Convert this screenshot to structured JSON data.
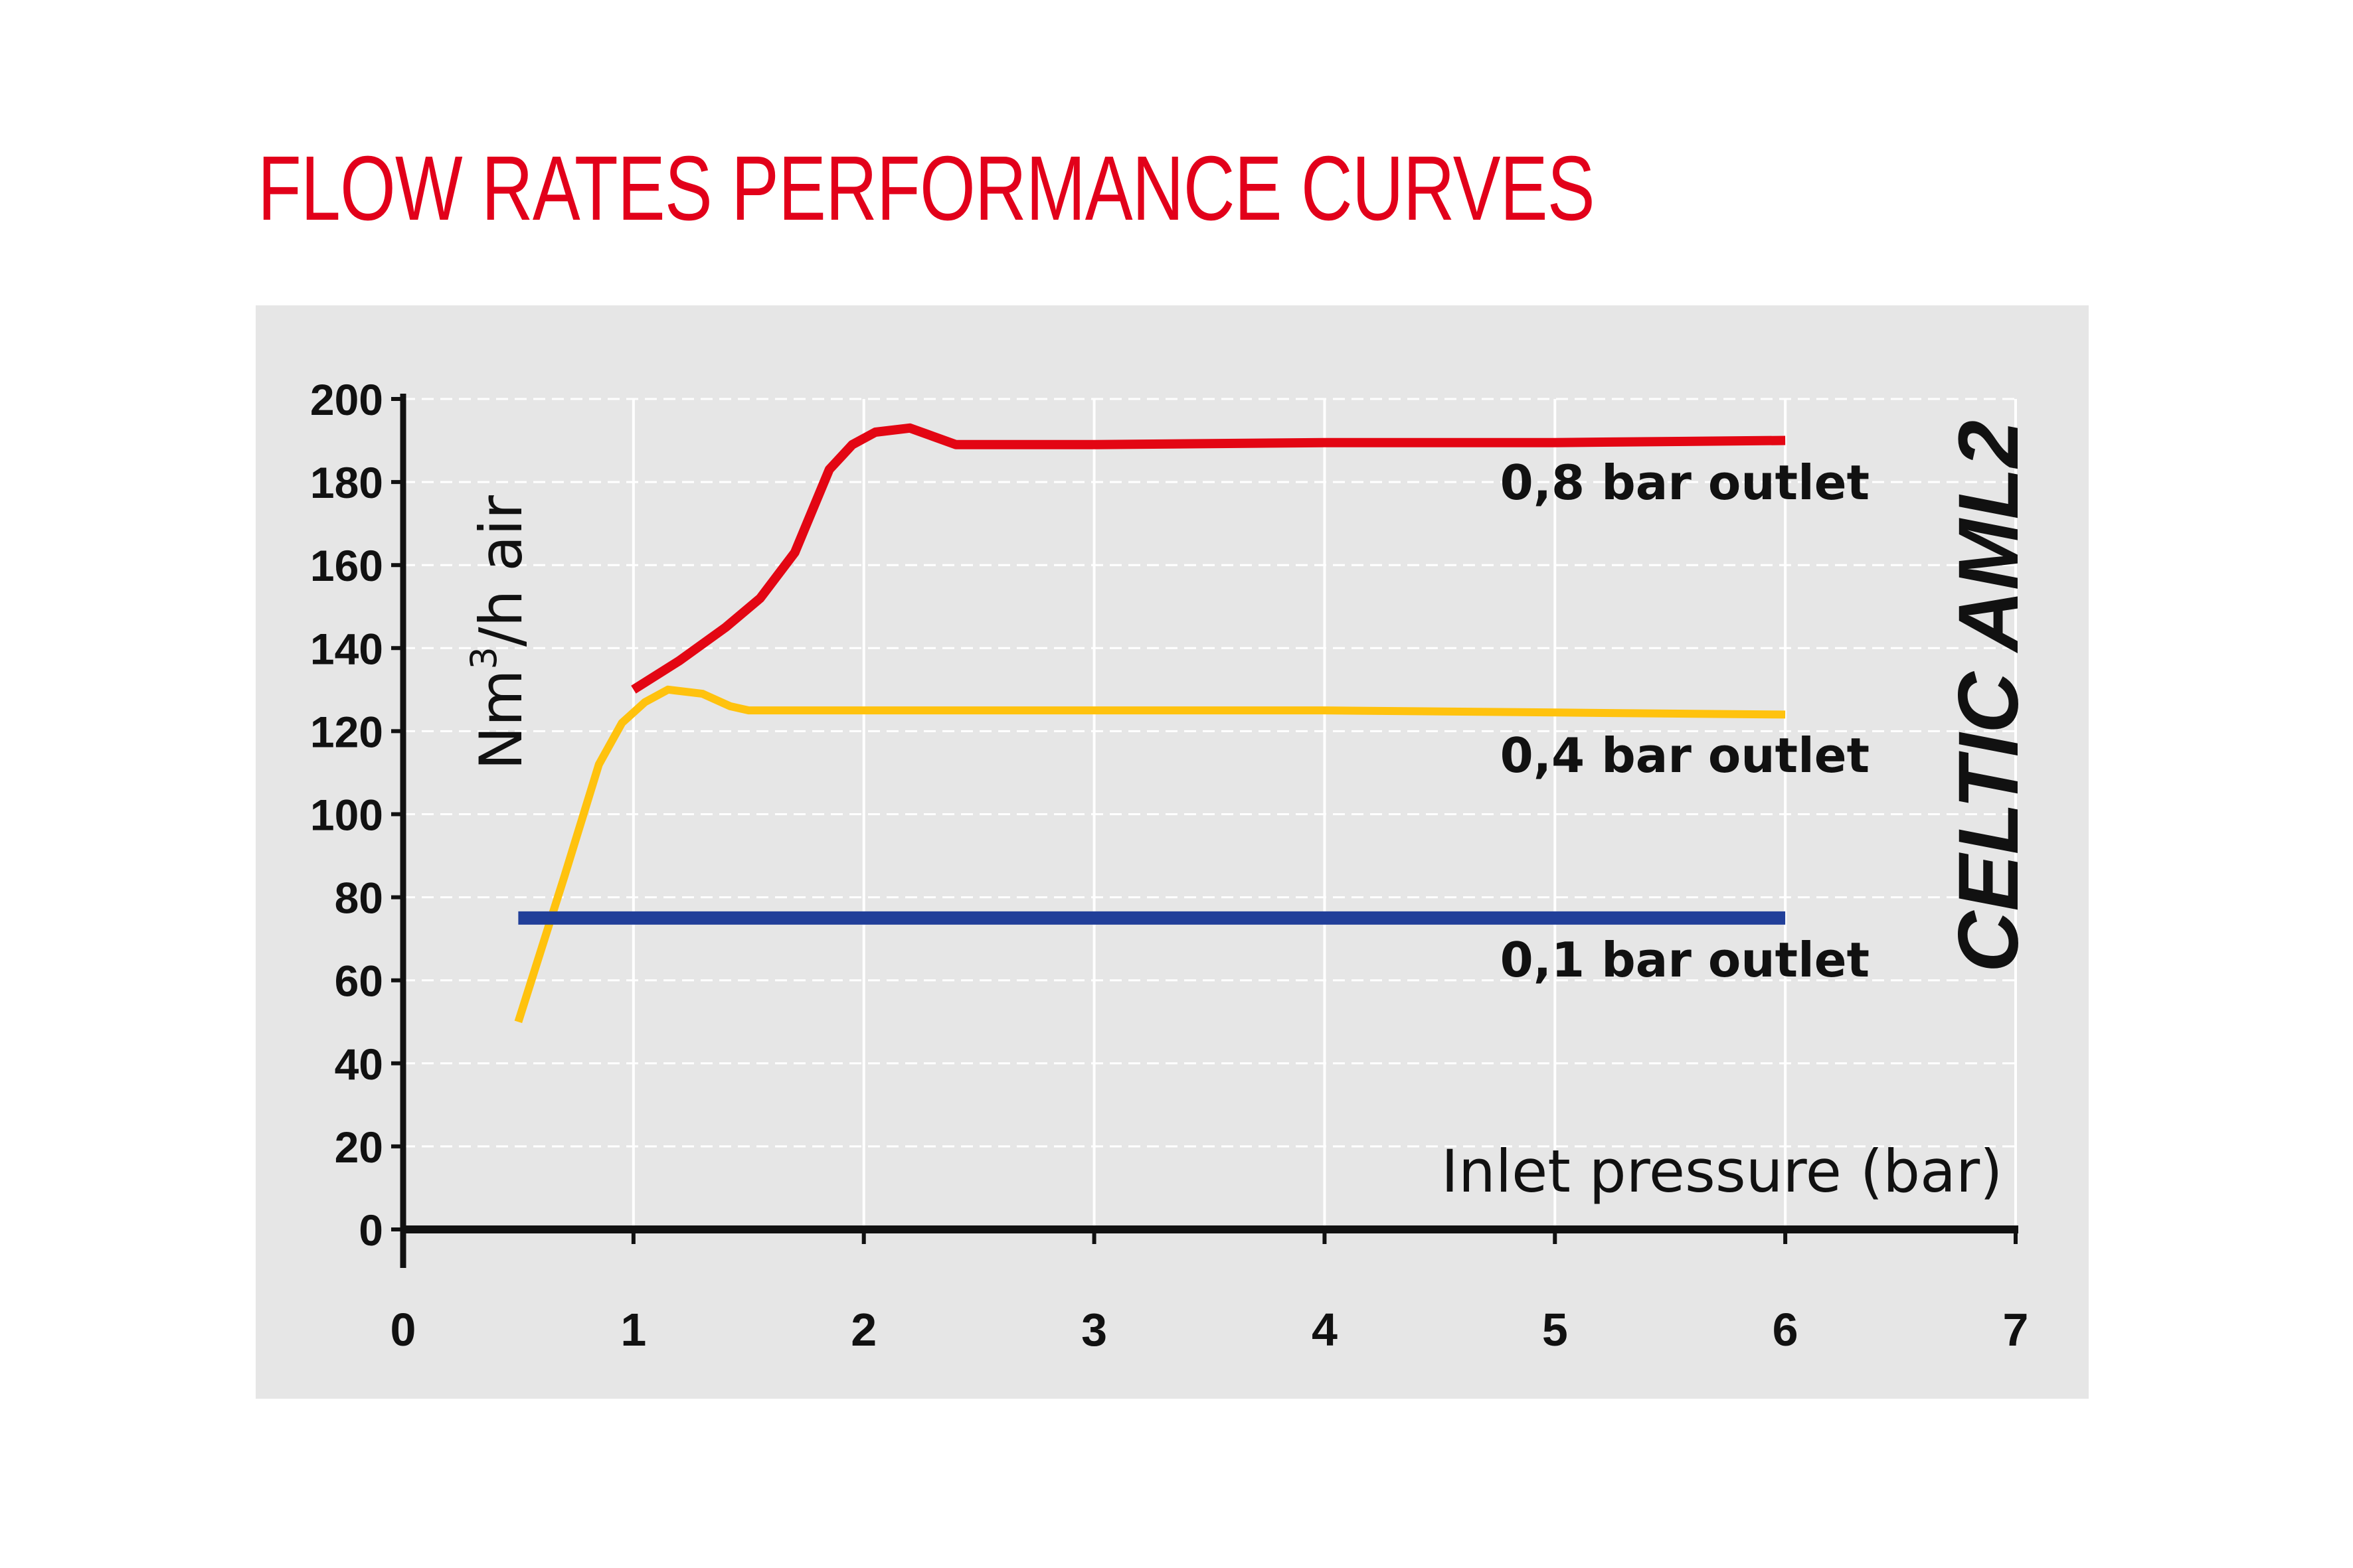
{
  "title": "FLOW RATES PERFORMANCE CURVES",
  "model_label": "CELTIC AML2",
  "colors": {
    "title": "#e2001a",
    "panel_background": "#e6e6e6",
    "grid": "#ffffff",
    "axis": "#111111",
    "series_0_8": "#e30613",
    "series_0_4": "#ffc20e",
    "series_0_1": "#213f99"
  },
  "chart_data": {
    "type": "line",
    "title": "FLOW RATES PERFORMANCE CURVES",
    "xlabel": "Inlet pressure (bar)",
    "ylabel": "Nm³/h air",
    "ylabel_main": "Nm",
    "ylabel_sup": "3",
    "ylabel_tail": "/h air",
    "xlim": [
      0,
      7
    ],
    "ylim": [
      0,
      200
    ],
    "x_ticks": [
      "0",
      "1",
      "2",
      "3",
      "4",
      "5",
      "6",
      "7"
    ],
    "y_ticks": [
      "0",
      "20",
      "40",
      "60",
      "80",
      "100",
      "120",
      "140",
      "160",
      "180",
      "200"
    ],
    "grid": true,
    "series": [
      {
        "name": "0,8 bar outlet",
        "color": "#e30613",
        "points": [
          [
            1.0,
            130
          ],
          [
            1.2,
            137
          ],
          [
            1.4,
            145
          ],
          [
            1.55,
            152
          ],
          [
            1.7,
            163
          ],
          [
            1.85,
            183
          ],
          [
            1.95,
            189
          ],
          [
            2.05,
            192
          ],
          [
            2.2,
            193
          ],
          [
            2.3,
            191
          ],
          [
            2.4,
            189
          ],
          [
            3.0,
            189
          ],
          [
            4.0,
            189.5
          ],
          [
            5.0,
            189.5
          ],
          [
            6.0,
            190
          ]
        ]
      },
      {
        "name": "0,4 bar outlet",
        "color": "#ffc20e",
        "points": [
          [
            0.5,
            50
          ],
          [
            0.7,
            85
          ],
          [
            0.85,
            112
          ],
          [
            0.95,
            122
          ],
          [
            1.05,
            127
          ],
          [
            1.15,
            130
          ],
          [
            1.3,
            129
          ],
          [
            1.42,
            126
          ],
          [
            1.5,
            125
          ],
          [
            2.0,
            125
          ],
          [
            3.0,
            125
          ],
          [
            4.0,
            125
          ],
          [
            5.0,
            124.5
          ],
          [
            6.0,
            124
          ]
        ]
      },
      {
        "name": "0,1 bar outlet",
        "color": "#213f99",
        "points": [
          [
            0.5,
            75
          ],
          [
            6.0,
            75
          ]
        ]
      }
    ]
  }
}
